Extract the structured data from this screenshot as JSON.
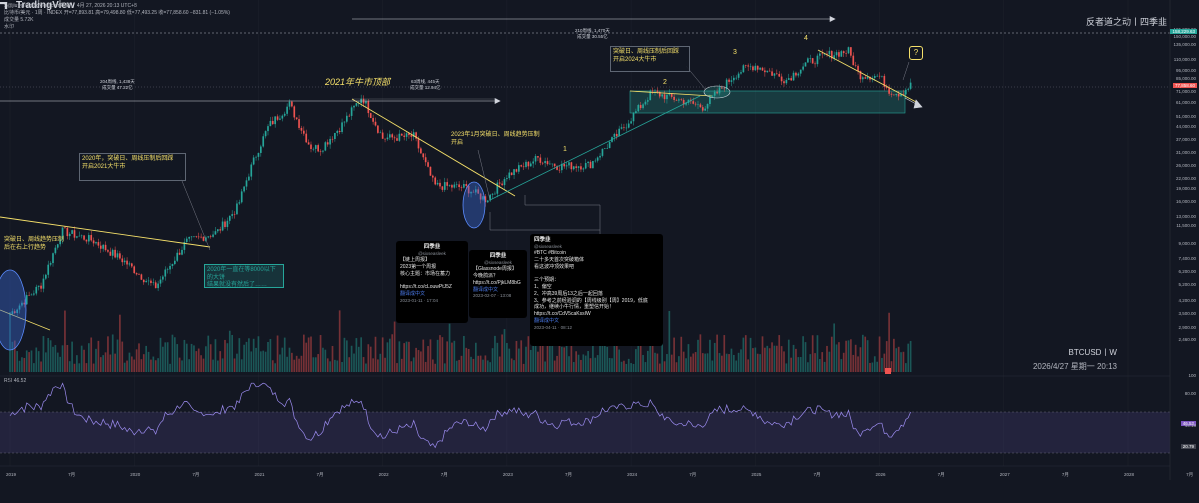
{
  "header": {
    "line1": "比特币/美元 · 1周 · INDEX  开=77,893.81  高=79,498.80  低=77,493.25  收=77,858.60  −831.81 (−1.05%)",
    "ohlc": "S@jiu为TradingView.com所做，  4月 27, 2026 20:13 UTC+8",
    "volume": "成交量  5.72K",
    "water": "水印"
  },
  "brand": "反者道之动丨四季韭",
  "watermark": {
    "symbol": "BTCUSD丨W",
    "time": "2026/4/27 星期一 20:13"
  },
  "footer": {
    "logo": "TradingView"
  },
  "rsi_label": "RSI  46.52",
  "price_labels": [
    "165,000.00",
    "150,000.00",
    "135,000.00",
    "110,000.00",
    "95,000.00",
    "85,000.00",
    "71,000.00",
    "61,000.00",
    "51,000.00",
    "44,000.00",
    "37,000.00",
    "31,000.00",
    "26,000.00",
    "22,000.00",
    "19,000.00",
    "16,000.00",
    "13,000.00",
    "11,500.00",
    "9,000.00",
    "7,400.00",
    "6,200.00",
    "5,200.00",
    "4,200.00",
    "3,500.00",
    "2,900.00",
    "2,460.00"
  ],
  "price_badges": {
    "top": "158,229.63",
    "cur": "77,858.60"
  },
  "rsi_labels": [
    "100",
    "80.00",
    "46.52",
    "44.18",
    "20.00",
    "20.79"
  ],
  "time_labels": [
    "2019",
    "7月",
    "2020",
    "7月",
    "2021",
    "7月",
    "2022",
    "7月",
    "2023",
    "7月",
    "2024",
    "7月",
    "2025",
    "7月",
    "2026",
    "7月",
    "2027",
    "7月",
    "2028",
    "7月"
  ],
  "annotations": {
    "bull_top": "2021年牛市顶部",
    "left_box": "204周线, 1,438天\n成交量 47.22亿",
    "mid_box": "63周线, 445天\n成交量 12.94亿",
    "right_box": "210周线, 1,470天\n成交量 30.55亿",
    "note2020": "2020年，突破日、周线压制后回踩\n开启2021大牛市",
    "note_left": "突破日、周线趋势压制\n后在右上行趋势",
    "note2023": "2023年1月突破日、周线趋势压制\n开启",
    "note2024": "突破日、周线压制后回踩\n开启2024大牛市",
    "green_note": "2020年一直在等8000以下的大饼\n结果就没有然后了……",
    "waves": [
      "1",
      "2",
      "3",
      "4"
    ],
    "question": "?"
  },
  "tweets": [
    {
      "name": "四季韭",
      "handle": "@sixseasleek",
      "body": "【链上周报】\n2023第一个周报\n核心主题：市场在蓄力\n\nhttps://t.co/cLouwPtJ5Z",
      "link": "翻译成中文",
      "time": "2023-01-11 · 17:04"
    },
    {
      "name": "四季韭",
      "handle": "@sixseasleek",
      "body": "【Glassnode周报】\n今晚鸽派？\nhttps://t.co/PjkLM8bG",
      "link": "翻译成中文",
      "time": "2023-02-07 · 13:08"
    },
    {
      "name": "四季韭",
      "handle": "@sixseasleek",
      "body": "#BTC #Bitcoin\n二十多天首次突破箱体\n看这波冲顶效果吧\n\n三个预期：\n1、偏空\n2、冲高39周后13之后一起回落\n3、参考之前经验调的【周线级别【周】2019，低底\n成功，继续小牛行情，重塑信开始！\nhttps://t.co/CdV5caKssIW",
      "link": "翻译成中文",
      "time": "2023-04-11 · 08:12"
    }
  ],
  "chart_data": {
    "type": "candlestick",
    "title": "比特币/美元 · 1周 · INDEX",
    "scale": "log",
    "ylim": [
      2460,
      165000
    ],
    "x_range": [
      "2019-01",
      "2028-09"
    ],
    "series": [
      {
        "name": "BTCUSD",
        "values": [
          [
            "2019-01",
            3500
          ],
          [
            "2019-04",
            5200
          ],
          [
            "2019-06",
            10800
          ],
          [
            "2019-09",
            9500
          ],
          [
            "2019-12",
            7200
          ],
          [
            "2020-03",
            5000
          ],
          [
            "2020-06",
            9300
          ],
          [
            "2020-09",
            10600
          ],
          [
            "2020-11",
            15000
          ],
          [
            "2020-12",
            23000
          ],
          [
            "2021-01",
            33000
          ],
          [
            "2021-02",
            45000
          ],
          [
            "2021-04",
            60000
          ],
          [
            "2021-06",
            34000
          ],
          [
            "2021-07",
            33000
          ],
          [
            "2021-09",
            45000
          ],
          [
            "2021-11",
            67000
          ],
          [
            "2022-01",
            38000
          ],
          [
            "2022-04",
            39000
          ],
          [
            "2022-06",
            20000
          ],
          [
            "2022-09",
            19500
          ],
          [
            "2022-11",
            16500
          ],
          [
            "2023-01",
            23000
          ],
          [
            "2023-04",
            29000
          ],
          [
            "2023-06",
            26000
          ],
          [
            "2023-09",
            26500
          ],
          [
            "2023-12",
            42000
          ],
          [
            "2024-03",
            71000
          ],
          [
            "2024-06",
            63000
          ],
          [
            "2024-08",
            58000
          ],
          [
            "2024-11",
            90000
          ],
          [
            "2024-12",
            98000
          ],
          [
            "2025-01",
            102000
          ],
          [
            "2025-04",
            84000
          ],
          [
            "2025-06",
            106000
          ],
          [
            "2025-08",
            118000
          ],
          [
            "2025-10",
            124000
          ],
          [
            "2025-11",
            90000
          ],
          [
            "2026-01",
            88000
          ],
          [
            "2026-02",
            72000
          ],
          [
            "2026-03",
            70000
          ],
          [
            "2026-04",
            77858
          ]
        ]
      }
    ],
    "rsi": {
      "current": 46.52,
      "levels": [
        80,
        20
      ]
    }
  }
}
